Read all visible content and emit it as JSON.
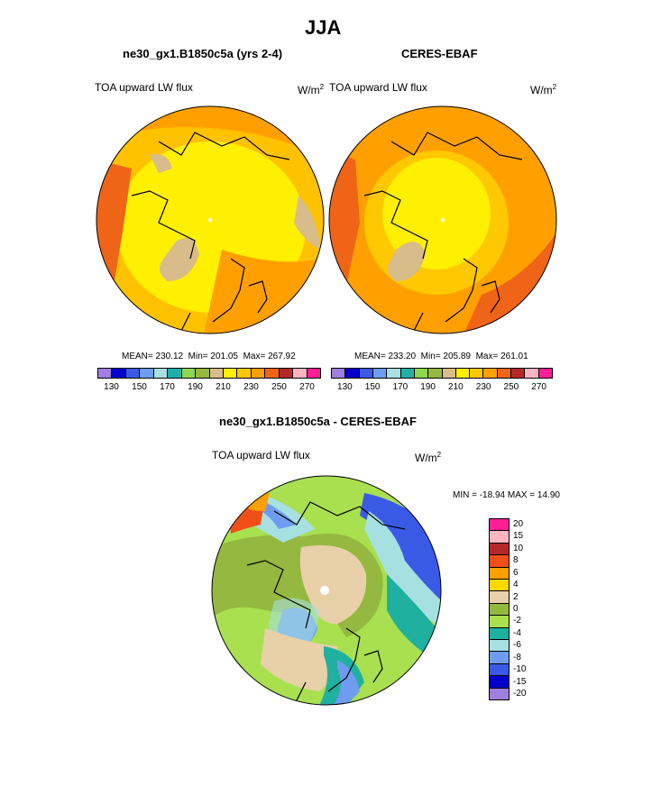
{
  "chart_data": [
    {
      "type": "heatmap",
      "projection": "north-polar-stereographic",
      "title": "ne30_gx1.B1850c5a (yrs 2-4)",
      "variable": "TOA upward LW flux",
      "units": "W/m",
      "units_exp": "2",
      "stats": {
        "mean_label": "MEAN=",
        "mean": "230.12",
        "min_label": "Min=",
        "min": "201.05",
        "max_label": "Max=",
        "max": "267.92"
      },
      "colorbar": {
        "ticks": [
          "130",
          "150",
          "170",
          "190",
          "210",
          "230",
          "250",
          "270"
        ]
      }
    },
    {
      "type": "heatmap",
      "projection": "north-polar-stereographic",
      "title": "CERES-EBAF",
      "variable": "TOA upward LW flux",
      "units": "W/m",
      "units_exp": "2",
      "stats": {
        "mean_label": "MEAN=",
        "mean": "233.20",
        "min_label": "Min=",
        "min": "205.89",
        "max_label": "Max=",
        "max": "261.01"
      },
      "colorbar": {
        "ticks": [
          "130",
          "150",
          "170",
          "190",
          "210",
          "230",
          "250",
          "270"
        ]
      }
    },
    {
      "type": "heatmap",
      "projection": "north-polar-stereographic",
      "title": "ne30_gx1.B1850c5a - CERES-EBAF",
      "variable": "TOA upward LW flux",
      "units": "W/m",
      "units_exp": "2",
      "range_text": "MIN = -18.94 MAX =  14.90",
      "colorbar": {
        "ticks": [
          "20",
          "15",
          "10",
          "8",
          "6",
          "4",
          "2",
          "0",
          "-2",
          "-4",
          "-6",
          "-8",
          "-10",
          "-15",
          "-20"
        ]
      }
    }
  ],
  "page": {
    "season": "JJA"
  },
  "colors": {
    "abs_scale": [
      "#9f7fe0",
      "#0000c8",
      "#3a5ae6",
      "#6e9cf0",
      "#a6e0e0",
      "#20b0a8",
      "#8cd850",
      "#94b840",
      "#d8bc8a",
      "#fff000",
      "#ffc800",
      "#ffa000",
      "#f06418",
      "#b42828",
      "#ffb4c0",
      "#ff1e96"
    ],
    "diff_scale": [
      "#ff1e96",
      "#ffb4c0",
      "#b42828",
      "#f05018",
      "#ffa000",
      "#ffd800",
      "#e8d0a8",
      "#94b840",
      "#a8e050",
      "#20b0a0",
      "#a6e0e0",
      "#6e9cf0",
      "#3a5ae6",
      "#0000c8",
      "#9f7fe0"
    ]
  }
}
